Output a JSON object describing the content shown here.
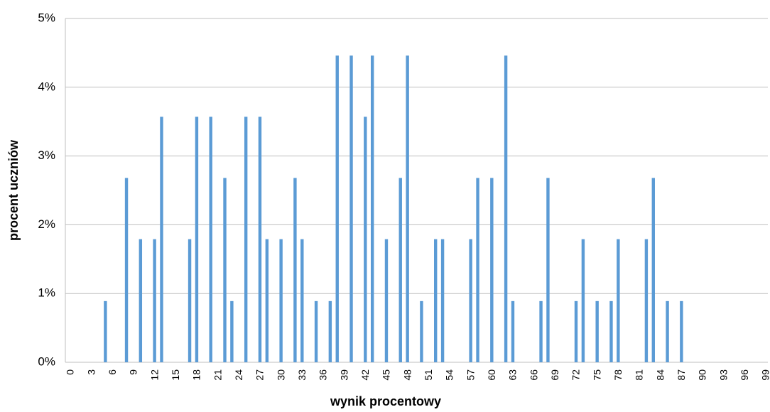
{
  "chart_data": {
    "type": "bar",
    "x_label": "wynik procentowy",
    "y_label": "procent uczniów",
    "categories": [
      "0",
      null,
      null,
      "3",
      null,
      null,
      "6",
      null,
      null,
      "9",
      null,
      null,
      "12",
      null,
      null,
      "15",
      null,
      null,
      "18",
      null,
      null,
      "21",
      null,
      null,
      "24",
      null,
      null,
      "27",
      null,
      null,
      "30",
      null,
      null,
      "33",
      null,
      null,
      "36",
      null,
      null,
      "39",
      null,
      null,
      "42",
      null,
      null,
      "45",
      null,
      null,
      "48",
      null,
      null,
      "51",
      null,
      null,
      "54",
      null,
      null,
      "57",
      null,
      null,
      "60",
      null,
      null,
      "63",
      null,
      null,
      "66",
      null,
      null,
      "69",
      null,
      null,
      "72",
      null,
      null,
      "75",
      null,
      null,
      "78",
      null,
      null,
      "81",
      null,
      null,
      "84",
      null,
      null,
      "87",
      null,
      null,
      "90",
      null,
      null,
      "93",
      null,
      null,
      "96",
      null,
      null,
      "99"
    ],
    "values": [
      0,
      0,
      0,
      0,
      0,
      0.89,
      0,
      0,
      2.68,
      0,
      1.79,
      0,
      1.79,
      3.57,
      0,
      0,
      0,
      1.79,
      3.57,
      0,
      3.57,
      0,
      2.68,
      0.89,
      0,
      3.57,
      0,
      3.57,
      1.79,
      0,
      1.79,
      0,
      2.68,
      1.79,
      0,
      0.89,
      0,
      0.89,
      4.46,
      0,
      4.46,
      0,
      3.57,
      4.46,
      0,
      1.79,
      0,
      2.68,
      4.46,
      0,
      0.89,
      0,
      1.79,
      1.79,
      0,
      0,
      0,
      1.79,
      2.68,
      0,
      2.68,
      0,
      4.46,
      0.89,
      0,
      0,
      0,
      0.89,
      2.68,
      0,
      0,
      0,
      0.89,
      1.79,
      0,
      0.89,
      0,
      0.89,
      1.79,
      0,
      0,
      0,
      1.79,
      2.68,
      0,
      0.89,
      0,
      0.89,
      0,
      0,
      0,
      0,
      0,
      0,
      0,
      0,
      0,
      0,
      0,
      0
    ],
    "color": "#5b9bd5",
    "ylim": [
      0,
      5
    ],
    "yticks": [
      {
        "value": 0,
        "label": "0%"
      },
      {
        "value": 1,
        "label": "1%"
      },
      {
        "value": 2,
        "label": "2%"
      },
      {
        "value": 3,
        "label": "3%"
      },
      {
        "value": 4,
        "label": "4%"
      },
      {
        "value": 5,
        "label": "5%"
      }
    ],
    "grid": true
  }
}
